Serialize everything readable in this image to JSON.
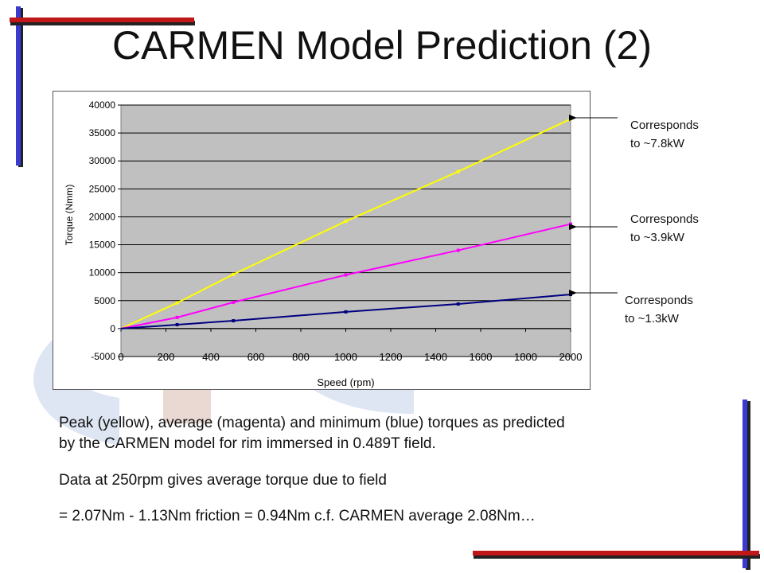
{
  "slide": {
    "title": "CARMEN Model Prediction (2)",
    "annotations": [
      {
        "line1": "Corresponds",
        "line2": "to ~7.8kW"
      },
      {
        "line1": "Corresponds",
        "line2": "to ~3.9kW"
      },
      {
        "line1": "Corresponds",
        "line2": "to ~1.3kW"
      }
    ],
    "body": {
      "line1": "Peak (yellow), average (magenta) and minimum (blue) torques as predicted",
      "line2": "by the CARMEN model for rim immersed in 0.489T field.",
      "line3": "Data at 250rpm gives average torque due to field",
      "line4": "= 2.07Nm - 1.13Nm friction = 0.94Nm c.f. CARMEN average 2.08Nm…"
    },
    "colors": {
      "accent_blue": "#3a3ad0",
      "accent_red": "#c01818",
      "shadow": "#222222",
      "watermark": "#dfe6f3",
      "plot_bg": "#c0c0c0"
    }
  },
  "chart_data": {
    "type": "line",
    "title": "",
    "xlabel": "Speed (rpm)",
    "ylabel": "Torque (Nmm)",
    "xlim": [
      0,
      2000
    ],
    "ylim": [
      -5000,
      40000
    ],
    "xticks": [
      0,
      200,
      400,
      600,
      800,
      1000,
      1200,
      1400,
      1600,
      1800,
      2000
    ],
    "yticks": [
      -5000,
      0,
      5000,
      10000,
      15000,
      20000,
      25000,
      30000,
      35000,
      40000
    ],
    "grid": "horizontal",
    "legend": "none",
    "series": [
      {
        "color": "#ffff00",
        "x": [
          0,
          250,
          500,
          1000,
          1500,
          2000
        ],
        "y": [
          0,
          4600,
          9700,
          19200,
          28100,
          37500
        ]
      },
      {
        "color": "#ff00ff",
        "x": [
          0,
          250,
          500,
          1000,
          1500,
          2000
        ],
        "y": [
          0,
          2000,
          4700,
          9600,
          14000,
          18700
        ]
      },
      {
        "color": "#000080",
        "x": [
          0,
          250,
          500,
          1000,
          1500,
          2000
        ],
        "y": [
          0,
          700,
          1400,
          3000,
          4400,
          6100
        ]
      }
    ]
  }
}
